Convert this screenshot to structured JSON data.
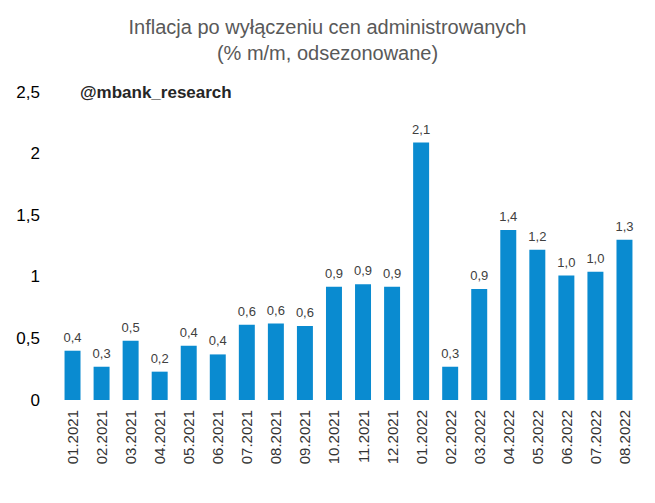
{
  "chart_data": {
    "type": "bar",
    "title": "Inflacja po wyłączeniu cen administrowanych",
    "subtitle": "(% m/m, odsezonowane)",
    "annotation": "@mbank_research",
    "categories": [
      "01.2021",
      "02.2021",
      "03.2021",
      "04.2021",
      "05.2021",
      "06.2021",
      "07.2021",
      "08.2021",
      "09.2021",
      "10.2021",
      "11.2021",
      "12.2021",
      "01.2022",
      "02.2022",
      "03.2022",
      "04.2022",
      "05.2022",
      "06.2022",
      "07.2022",
      "08.2022"
    ],
    "values": [
      0.4,
      0.27,
      0.48,
      0.23,
      0.44,
      0.37,
      0.61,
      0.62,
      0.6,
      0.92,
      0.94,
      0.92,
      2.09,
      0.27,
      0.9,
      1.38,
      1.22,
      1.01,
      1.04,
      1.3
    ],
    "value_labels": [
      "0,4",
      "0,3",
      "0,5",
      "0,2",
      "0,4",
      "0,4",
      "0,6",
      "0,6",
      "0,6",
      "0,9",
      "0,9",
      "0,9",
      "2,1",
      "0,3",
      "0,9",
      "1,4",
      "1,2",
      "1,0",
      "1,0",
      "1,3"
    ],
    "color": "#0a8bd0",
    "ylim": [
      0,
      2.5
    ],
    "yticks": [
      0,
      {
        "value": 0.5,
        "label": "0,5"
      },
      1,
      {
        "value": 1.5,
        "label": "1,5"
      },
      2,
      {
        "value": 2.5,
        "label": "2,5"
      }
    ],
    "grid": false,
    "data_labels": true
  }
}
